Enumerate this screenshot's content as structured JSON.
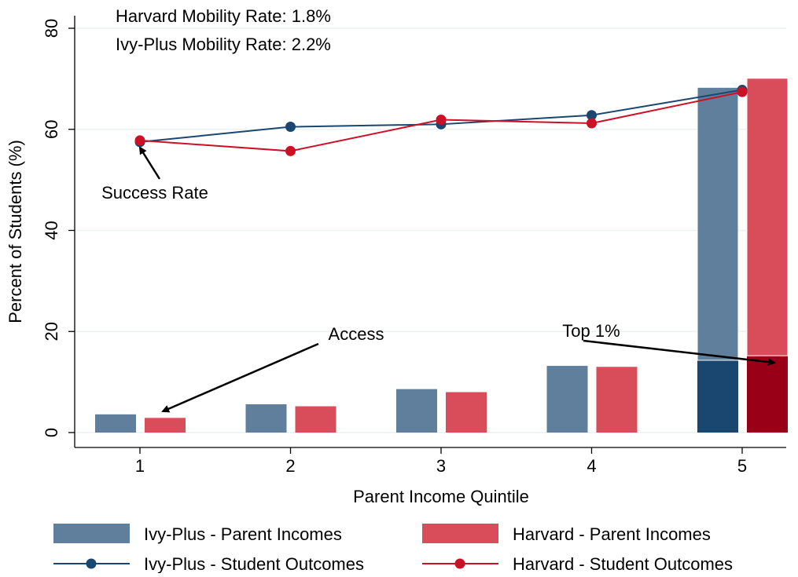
{
  "chart_data": {
    "type": "bar-line",
    "x_label": "Parent Income Quintile",
    "y_label": "Percent of Students (%)",
    "annotations": [
      "Harvard Mobility Rate:  1.8%",
      "Ivy-Plus Mobility Rate:   2.2%",
      "Success Rate",
      "Access",
      "Top 1%"
    ],
    "categories": [
      "1",
      "2",
      "3",
      "4",
      "5"
    ],
    "ylim": [
      0,
      80
    ],
    "yticks": [
      0,
      20,
      40,
      60,
      80
    ],
    "grid": true,
    "bar_series": [
      {
        "name": "Ivy-Plus - Parent Incomes",
        "color": "#607f9c",
        "values": [
          3.6,
          5.6,
          8.6,
          13.2,
          54.0
        ],
        "top_1": [
          null,
          null,
          null,
          null,
          14.3
        ],
        "top_1_color": "#1a476f"
      },
      {
        "name": "Harvard - Parent Incomes",
        "color": "#d94c5a",
        "values": [
          2.9,
          5.2,
          8.0,
          13.0,
          54.9
        ],
        "top_1": [
          null,
          null,
          null,
          null,
          15.2
        ],
        "top_1_color": "#990017"
      }
    ],
    "line_series": [
      {
        "name": "Ivy-Plus - Student Outcomes",
        "color": "#1a476f",
        "values": [
          57.5,
          60.5,
          61.0,
          62.8,
          67.8
        ]
      },
      {
        "name": "Harvard - Student Outcomes",
        "color": "#cc1126",
        "values": [
          57.8,
          55.7,
          61.9,
          61.2,
          67.4
        ]
      }
    ]
  }
}
